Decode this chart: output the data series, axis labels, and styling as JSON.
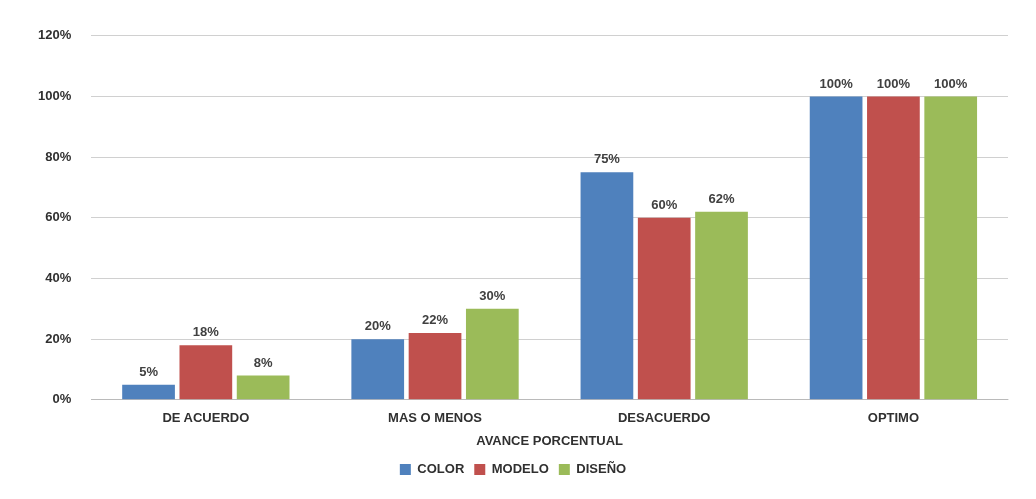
{
  "chart_data": {
    "type": "bar",
    "xlabel": "AVANCE PORCENTUAL",
    "categories": [
      "DE ACUERDO",
      "MAS O MENOS",
      "DESACUERDO",
      "OPTIMO"
    ],
    "series": [
      {
        "name": "COLOR",
        "color": "#4f81bd",
        "values": [
          5,
          20,
          75,
          100
        ],
        "value_labels": [
          "5%",
          "20%",
          "75%",
          "100%"
        ]
      },
      {
        "name": "MODELO",
        "color": "#c0504d",
        "values": [
          18,
          22,
          60,
          100
        ],
        "value_labels": [
          "18%",
          "22%",
          "60%",
          "100%"
        ]
      },
      {
        "name": "DISEÑO",
        "color": "#9bbb59",
        "values": [
          8,
          30,
          62,
          100
        ],
        "value_labels": [
          "8%",
          "30%",
          "62%",
          "100%"
        ]
      }
    ],
    "ylim": [
      0,
      120
    ],
    "yticks": [
      {
        "value": 0,
        "label": "0%"
      },
      {
        "value": 20,
        "label": "20%"
      },
      {
        "value": 40,
        "label": "40%"
      },
      {
        "value": 60,
        "label": "60%"
      },
      {
        "value": 80,
        "label": "80%"
      },
      {
        "value": 100,
        "label": "100%"
      },
      {
        "value": 120,
        "label": "120%"
      }
    ],
    "grid": "y",
    "legend": "bottom"
  }
}
